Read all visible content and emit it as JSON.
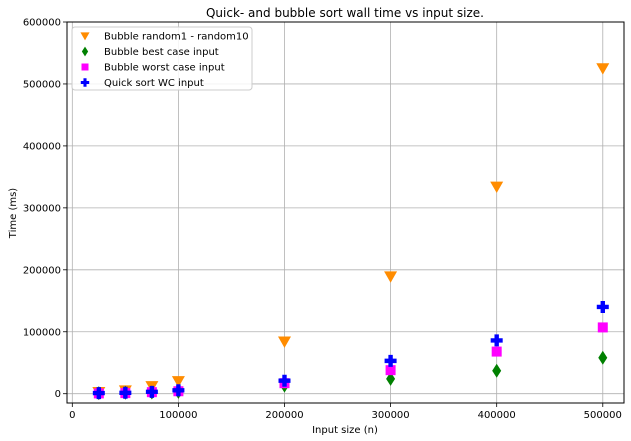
{
  "chart_data": {
    "type": "scatter",
    "title": "Quick- and bubble sort  wall time vs input size.",
    "xlabel": "Input size (n)",
    "ylabel": "Time (ms)",
    "xlim": [
      -5000,
      520000
    ],
    "ylim": [
      -15000,
      600000
    ],
    "xticks": [
      0,
      100000,
      200000,
      300000,
      400000,
      500000
    ],
    "xtick_labels": [
      "0",
      "100000",
      "200000",
      "300000",
      "400000",
      "500000"
    ],
    "yticks": [
      0,
      100000,
      200000,
      300000,
      400000,
      500000,
      600000
    ],
    "ytick_labels": [
      "0",
      "100000",
      "200000",
      "300000",
      "400000",
      "500000",
      "600000"
    ],
    "grid": true,
    "legend_position": "top-left",
    "series": [
      {
        "name": "Bubble random1 - random10",
        "marker": "triangle-down",
        "color": "#ff8c00",
        "x": [
          25000,
          50000,
          75000,
          100000,
          200000,
          300000,
          400000,
          500000
        ],
        "y": [
          2500,
          5000,
          12000,
          20000,
          84000,
          189000,
          334000,
          525000
        ]
      },
      {
        "name": "Bubble best case input",
        "marker": "thin-diamond",
        "color": "#008000",
        "x": [
          25000,
          50000,
          75000,
          100000,
          200000,
          300000,
          400000,
          500000
        ],
        "y": [
          1000,
          1500,
          2000,
          3000,
          13000,
          24000,
          37000,
          58000
        ]
      },
      {
        "name": "Bubble worst case input",
        "marker": "square",
        "color": "#ff00ff",
        "x": [
          25000,
          50000,
          75000,
          100000,
          200000,
          300000,
          400000,
          500000
        ],
        "y": [
          500,
          1000,
          2500,
          4000,
          17000,
          38000,
          68000,
          107000
        ]
      },
      {
        "name": "Quick sort WC input",
        "marker": "plus",
        "color": "#0000ff",
        "x": [
          25000,
          50000,
          75000,
          100000,
          200000,
          300000,
          400000,
          500000
        ],
        "y": [
          1000,
          1500,
          3000,
          5500,
          21000,
          53000,
          86000,
          140000
        ]
      }
    ]
  }
}
